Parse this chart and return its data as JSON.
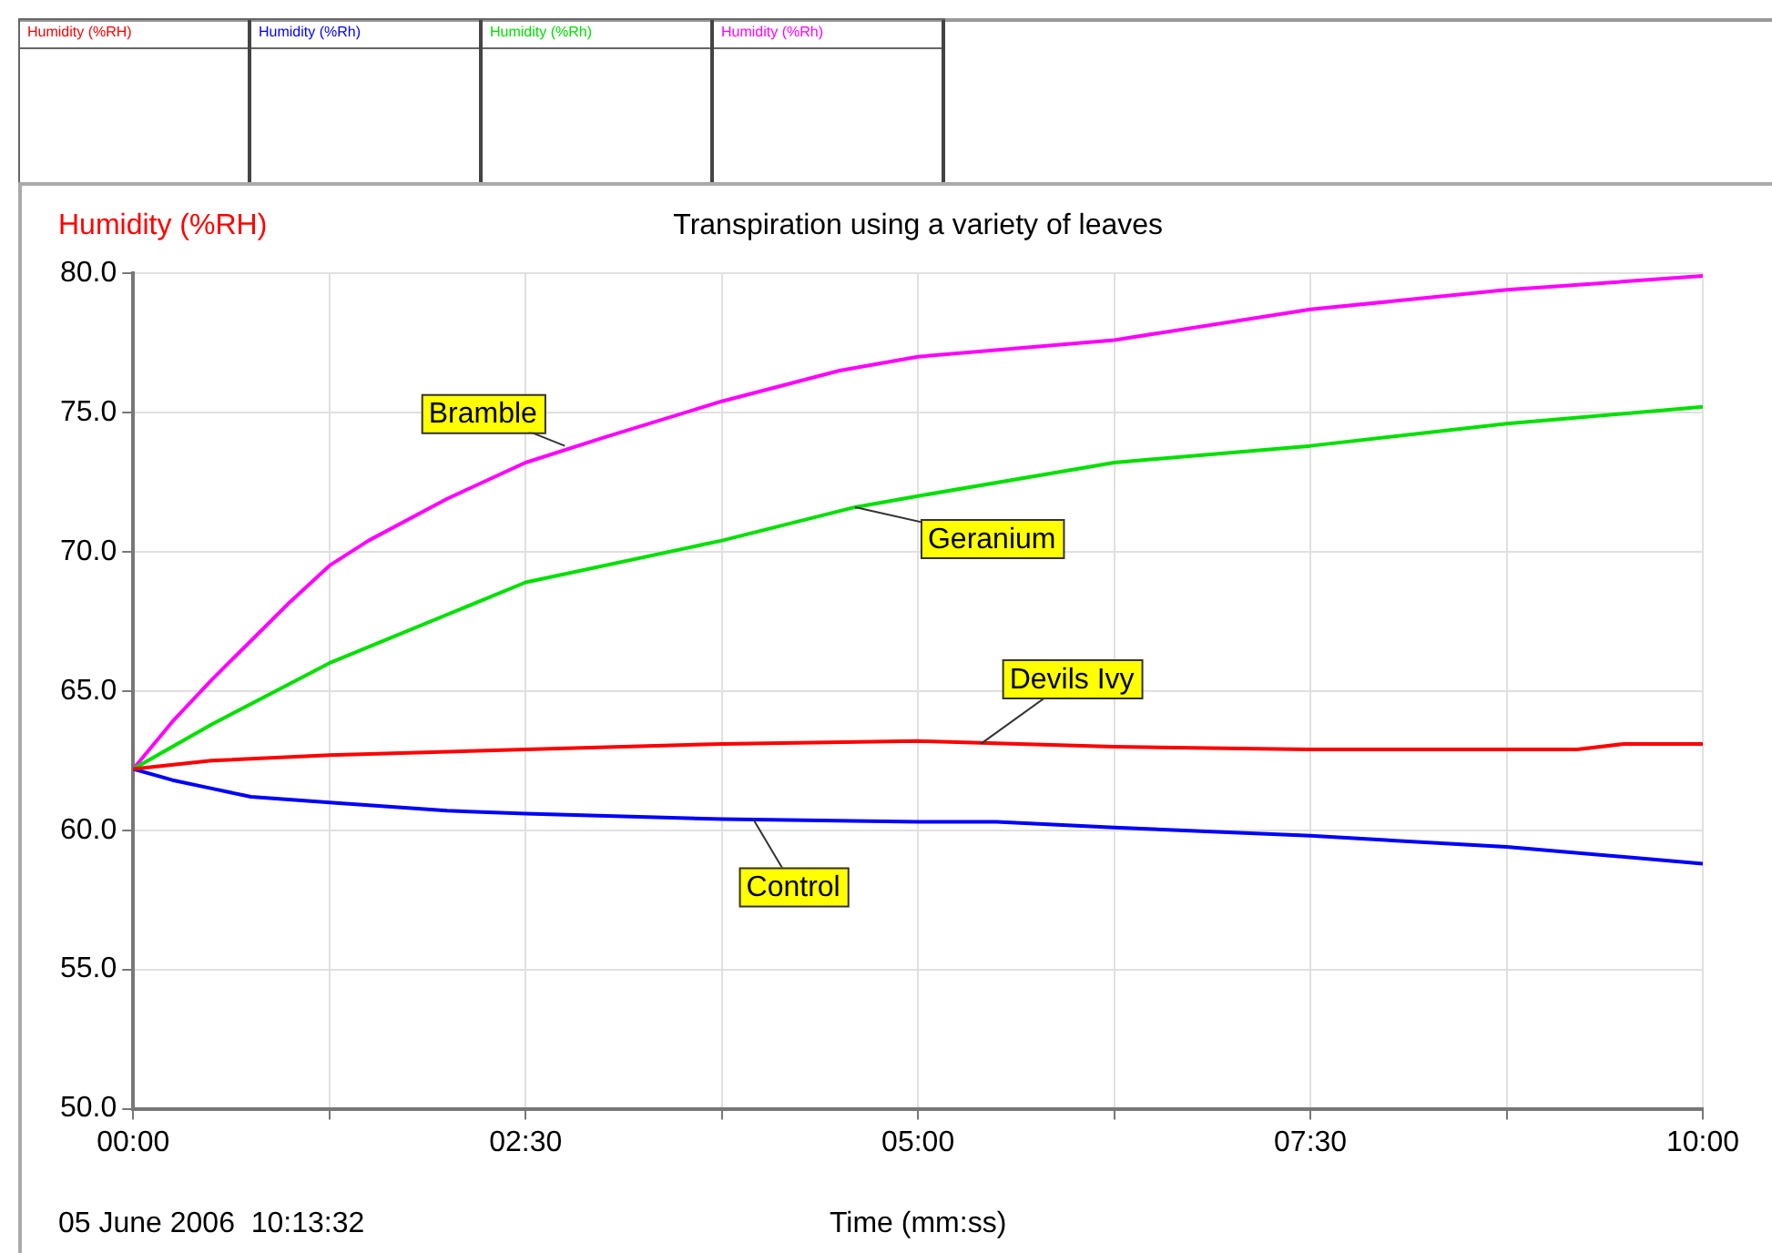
{
  "chart_data": {
    "type": "line",
    "title": "Transpiration using a variety of leaves",
    "xlabel": "Time (mm:ss)",
    "ylabel": "Humidity (%RH)",
    "xlim": [
      0,
      10
    ],
    "xticks": [
      {
        "value": 0,
        "label": "00:00"
      },
      {
        "value": 1.25,
        "label": null
      },
      {
        "value": 2.5,
        "label": "02:30"
      },
      {
        "value": 3.75,
        "label": null
      },
      {
        "value": 5,
        "label": "05:00"
      },
      {
        "value": 6.25,
        "label": null
      },
      {
        "value": 7.5,
        "label": "07:30"
      },
      {
        "value": 8.75,
        "label": null
      },
      {
        "value": 10,
        "label": "10:00"
      }
    ],
    "ylim": [
      50,
      80
    ],
    "yticks": [
      {
        "value": 50,
        "label": "50.0"
      },
      {
        "value": 55,
        "label": "55.0"
      },
      {
        "value": 60,
        "label": "60.0"
      },
      {
        "value": 65,
        "label": "65.0"
      },
      {
        "value": 70,
        "label": "70.0"
      },
      {
        "value": 75,
        "label": "75.0"
      },
      {
        "value": 80,
        "label": "80.0"
      }
    ],
    "grid": true,
    "legend": "top left",
    "marker": "none",
    "line_style": "solid",
    "series": [
      {
        "name": "Humidity (%RH)",
        "color": "#ff0000",
        "x": [
          0,
          0.5,
          1.25,
          2.5,
          3.75,
          5,
          6.25,
          7.5,
          8.75,
          9.2,
          9.5,
          10
        ],
        "values": [
          62.2,
          62.5,
          62.7,
          62.9,
          63.1,
          63.2,
          63.0,
          62.9,
          62.9,
          62.9,
          63.1,
          63.1
        ]
      },
      {
        "name": "Humidity (%Rh)",
        "color": "#0000ff",
        "x": [
          0,
          0.25,
          0.5,
          0.75,
          1.25,
          2,
          2.5,
          3.75,
          5,
          5.5,
          6.25,
          7.5,
          8.75,
          10
        ],
        "values": [
          62.2,
          61.8,
          61.5,
          61.2,
          61.0,
          60.7,
          60.6,
          60.4,
          60.3,
          60.3,
          60.1,
          59.8,
          59.4,
          58.8
        ]
      },
      {
        "name": "Humidity (%Rh)",
        "color": "#00e000",
        "x": [
          0,
          0.5,
          1.25,
          2.5,
          3.75,
          4.6,
          5,
          6.25,
          7.5,
          8.75,
          10
        ],
        "values": [
          62.2,
          63.8,
          66.0,
          68.9,
          70.4,
          71.6,
          72.0,
          73.2,
          73.8,
          74.6,
          75.2
        ]
      },
      {
        "name": "Humidity (%Rh)",
        "color": "#ff00ff",
        "x": [
          0,
          0.25,
          0.5,
          0.75,
          1,
          1.25,
          1.5,
          2,
          2.5,
          3,
          3.75,
          4.5,
          5,
          6.25,
          7.5,
          8.75,
          10
        ],
        "values": [
          62.2,
          63.9,
          65.4,
          66.8,
          68.2,
          69.5,
          70.4,
          71.9,
          73.2,
          74.1,
          75.4,
          76.5,
          77.0,
          77.6,
          78.7,
          79.4,
          79.9
        ]
      }
    ],
    "annotations": [
      {
        "text": "Bramble",
        "x": 2.75,
        "y": 73.8
      },
      {
        "text": "Geranium",
        "x": 4.6,
        "y": 71.6
      },
      {
        "text": "Devils Ivy",
        "x": 5.4,
        "y": 63.1
      },
      {
        "text": "Control",
        "x": 3.95,
        "y": 60.4
      },
      "05 June 2006  10:13:32"
    ]
  }
}
